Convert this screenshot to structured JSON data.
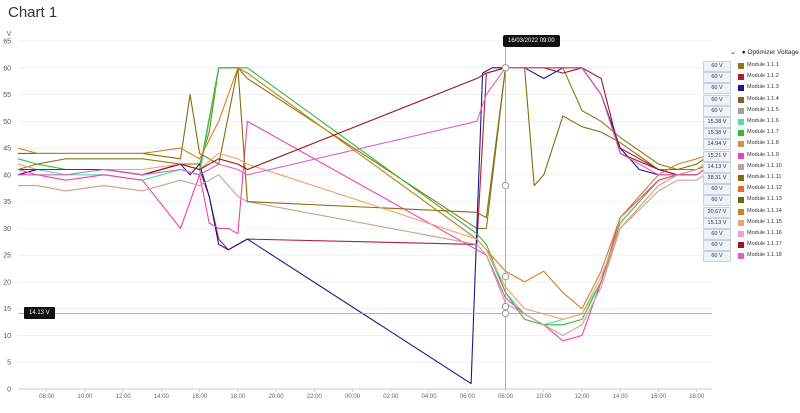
{
  "page": {
    "title": "Chart 1"
  },
  "tooltip": {
    "text": "16/03/2022 09:00"
  },
  "crosshair": {
    "label": "14.13 V"
  },
  "legend": {
    "title": "Optimizer Voltage",
    "items": [
      {
        "name": "Module 1.1.1",
        "value": "60 V",
        "color": "#8a7a1a"
      },
      {
        "name": "Module 1.1.2",
        "value": "60 V",
        "color": "#b01c3a"
      },
      {
        "name": "Module 1.1.3",
        "value": "60 V",
        "color": "#1c1a8c"
      },
      {
        "name": "Module 1.1.4",
        "value": "60 V",
        "color": "#8b5a2b"
      },
      {
        "name": "Module 1.1.5",
        "value": "60 V",
        "color": "#a0a0a0"
      },
      {
        "name": "Module 1.1.6",
        "value": "15.38 V",
        "color": "#4ee0a0"
      },
      {
        "name": "Module 1.1.7",
        "value": "15.38 V",
        "color": "#3ab83a"
      },
      {
        "name": "Module 1.1.8",
        "value": "14.94 V",
        "color": "#c79a3a"
      },
      {
        "name": "Module 1.1.9",
        "value": "15.21 V",
        "color": "#ee44aa"
      },
      {
        "name": "Module 1.1.10",
        "value": "14.13 V",
        "color": "#c8a090"
      },
      {
        "name": "Module 1.1.11",
        "value": "38.31 V",
        "color": "#8a6a10"
      },
      {
        "name": "Module 1.1.12",
        "value": "60 V",
        "color": "#e07020"
      },
      {
        "name": "Module 1.1.13",
        "value": "60 V",
        "color": "#6b6b10"
      },
      {
        "name": "Module 1.1.14",
        "value": "20.67 V",
        "color": "#d48020"
      },
      {
        "name": "Module 1.1.15",
        "value": "15.13 V",
        "color": "#f0a070"
      },
      {
        "name": "Module 1.1.16",
        "value": "60 V",
        "color": "#f0a0d0"
      },
      {
        "name": "Module 1.1.17",
        "value": "60 V",
        "color": "#a01818"
      },
      {
        "name": "Module 1.1.18",
        "value": "60 V",
        "color": "#e060c0"
      }
    ]
  },
  "chart_data": {
    "type": "line",
    "title": "Chart 1",
    "ylabel": "V",
    "ylim": [
      0,
      65
    ],
    "y_ticks": [
      "0",
      "5",
      "10",
      "15",
      "20",
      "25",
      "30",
      "35",
      "40",
      "45",
      "50",
      "55",
      "60",
      "65"
    ],
    "x_ticks": [
      "08:00",
      "10:00",
      "12:00",
      "14:00",
      "16:00",
      "18:00",
      "20:00",
      "22:00",
      "00:00",
      "02:00",
      "04:00",
      "06:00",
      "08:00",
      "10:00",
      "12:00",
      "14:00",
      "16:00",
      "18:00"
    ],
    "x_unit": "hours",
    "xlim": [
      6.5,
      42.8
    ],
    "grid": true,
    "legend_position": "right",
    "series": [
      {
        "name": "Module 1.1.1",
        "x": [
          6.5,
          7.5,
          9,
          11,
          13,
          15,
          16,
          16.5,
          17,
          17.5,
          18,
          18.5,
          30.5,
          31,
          32,
          33,
          33.5,
          34,
          35,
          36,
          37,
          38,
          40,
          41,
          42,
          42.8
        ],
        "values": [
          41,
          42,
          43,
          43,
          43,
          42,
          42,
          48,
          60,
          60,
          60,
          58,
          30,
          30,
          60,
          60,
          60,
          60,
          60,
          52,
          50,
          47,
          42,
          41,
          41,
          42
        ]
      },
      {
        "name": "Module 1.1.2",
        "x": [
          6.5,
          7.5,
          9,
          11,
          13,
          15,
          16,
          16.5,
          17,
          17.5,
          18,
          18.5,
          30.5,
          31,
          32,
          33,
          34,
          35,
          36,
          37,
          38,
          40,
          41,
          42,
          42.8
        ],
        "values": [
          40,
          41,
          41,
          41,
          40,
          42,
          41,
          36,
          28,
          26,
          27,
          28,
          27,
          59,
          60,
          60,
          60,
          60,
          60,
          55,
          45,
          41,
          40,
          40,
          42
        ]
      },
      {
        "name": "Module 1.1.3",
        "x": [
          6.5,
          7.5,
          9,
          11,
          13,
          15,
          15.5,
          16,
          16.5,
          17,
          17.5,
          18,
          18.5,
          30.2,
          30.8,
          31.3,
          31.8,
          32,
          33,
          34,
          35,
          36,
          37,
          38,
          39,
          40,
          41,
          42,
          42.8
        ],
        "values": [
          40,
          41,
          41,
          41,
          40,
          42,
          40,
          42,
          36,
          27,
          26,
          27,
          28,
          1,
          59,
          60,
          60,
          60,
          60,
          58,
          60,
          60,
          55,
          45,
          41,
          40,
          40,
          40,
          42
        ]
      },
      {
        "name": "Module 1.1.6",
        "x": [
          6.5,
          7.5,
          9,
          11,
          13,
          15,
          16,
          17,
          18,
          18.5,
          30.5,
          31,
          32,
          33,
          34,
          35,
          36,
          37,
          38,
          40,
          41,
          42,
          42.8
        ],
        "values": [
          42,
          41,
          40,
          40,
          39,
          41,
          40,
          60,
          60,
          59,
          28,
          26,
          18,
          14,
          12,
          13,
          14,
          20,
          30,
          38,
          40,
          41,
          43
        ]
      },
      {
        "name": "Module 1.1.7",
        "x": [
          6.5,
          7.5,
          9,
          11,
          13,
          15,
          16,
          17,
          18,
          18.5,
          30.5,
          31,
          32,
          33,
          34,
          35,
          36,
          37,
          38,
          40,
          41,
          42,
          42.8
        ],
        "values": [
          43,
          42,
          41,
          41,
          40,
          42,
          41,
          60,
          60,
          60,
          29,
          27,
          18,
          13,
          12,
          12,
          13,
          20,
          31,
          39,
          40,
          41,
          43
        ]
      },
      {
        "name": "Module 1.1.9",
        "x": [
          6.5,
          7.5,
          9,
          11,
          13,
          15,
          16,
          16.5,
          17,
          17.5,
          18,
          18.5,
          30.5,
          31,
          32,
          33,
          34,
          35,
          36,
          37,
          38,
          40,
          41,
          42,
          42.8
        ],
        "values": [
          40,
          40,
          39,
          40,
          39,
          30,
          40,
          31,
          30,
          30,
          29,
          50,
          26,
          25,
          17,
          14,
          12,
          9,
          10,
          20,
          32,
          39,
          40,
          40,
          42
        ]
      },
      {
        "name": "Module 1.1.10",
        "x": [
          6.5,
          7.5,
          9,
          11,
          13,
          15,
          16,
          17,
          18,
          18.5,
          30.5,
          31,
          32,
          33,
          34,
          35,
          36,
          37,
          38,
          40,
          41,
          42,
          42.8
        ],
        "values": [
          38,
          38,
          37,
          38,
          37,
          39,
          38,
          40,
          36,
          35,
          27,
          25,
          16,
          14,
          12,
          10,
          12,
          19,
          30,
          37,
          39,
          39,
          41
        ]
      },
      {
        "name": "Module 1.1.11",
        "x": [
          6.5,
          7.5,
          9,
          11,
          13,
          15,
          15.5,
          16,
          16.5,
          17,
          18,
          18.5,
          30.5,
          31,
          32,
          33,
          33.5,
          34,
          35,
          36,
          37,
          38,
          40,
          41,
          42,
          42.8
        ],
        "values": [
          44,
          44,
          44,
          44,
          44,
          43,
          55,
          44,
          43,
          42,
          60,
          35,
          33,
          32,
          60,
          60,
          38,
          40,
          51,
          49,
          48,
          46,
          41,
          41,
          42,
          44
        ]
      },
      {
        "name": "Module 1.1.14",
        "x": [
          6.5,
          7.5,
          9,
          11,
          13,
          15,
          16,
          17,
          18,
          18.5,
          30.5,
          31,
          32,
          33,
          34,
          35,
          36,
          37,
          38,
          40,
          41,
          42,
          42.8
        ],
        "values": [
          45,
          44,
          44,
          44,
          44,
          45,
          43,
          50,
          60,
          59,
          28,
          26,
          22,
          20,
          22,
          18,
          15,
          22,
          32,
          40,
          42,
          43,
          44
        ]
      },
      {
        "name": "Module 1.1.15",
        "x": [
          6.5,
          7.5,
          9,
          11,
          13,
          15,
          16,
          17,
          18,
          18.5,
          30.5,
          31,
          32,
          33,
          34,
          35,
          36,
          37,
          38,
          40,
          41,
          42,
          42.8
        ],
        "values": [
          42,
          41,
          41,
          41,
          41,
          42,
          41,
          44,
          43,
          42,
          28,
          26,
          19,
          15,
          14,
          13,
          14,
          21,
          30,
          38,
          40,
          41,
          43
        ]
      },
      {
        "name": "Module 1.1.17",
        "x": [
          6.5,
          7.5,
          9,
          11,
          13,
          15,
          16,
          17,
          18,
          18.5,
          30.5,
          31,
          32,
          33,
          34,
          35,
          36,
          37,
          38,
          40,
          41,
          42,
          42.8
        ],
        "values": [
          41,
          41,
          41,
          41,
          40,
          42,
          41,
          43,
          42,
          41,
          58,
          59,
          60,
          60,
          60,
          59,
          60,
          58,
          44,
          41,
          40,
          40,
          42
        ]
      },
      {
        "name": "Module 1.1.18",
        "x": [
          6.5,
          7.5,
          9,
          11,
          13,
          15,
          16,
          17,
          18,
          18.5,
          30.5,
          31,
          32,
          33,
          34,
          35,
          36,
          37,
          38,
          40,
          41,
          42,
          42.8
        ],
        "values": [
          41,
          40,
          40,
          41,
          40,
          41,
          40,
          42,
          41,
          40,
          50,
          55,
          60,
          60,
          60,
          60,
          60,
          55,
          44,
          40,
          40,
          40,
          42
        ]
      }
    ],
    "crosshair_x": 32.0,
    "crosshair_y": 14.13
  }
}
